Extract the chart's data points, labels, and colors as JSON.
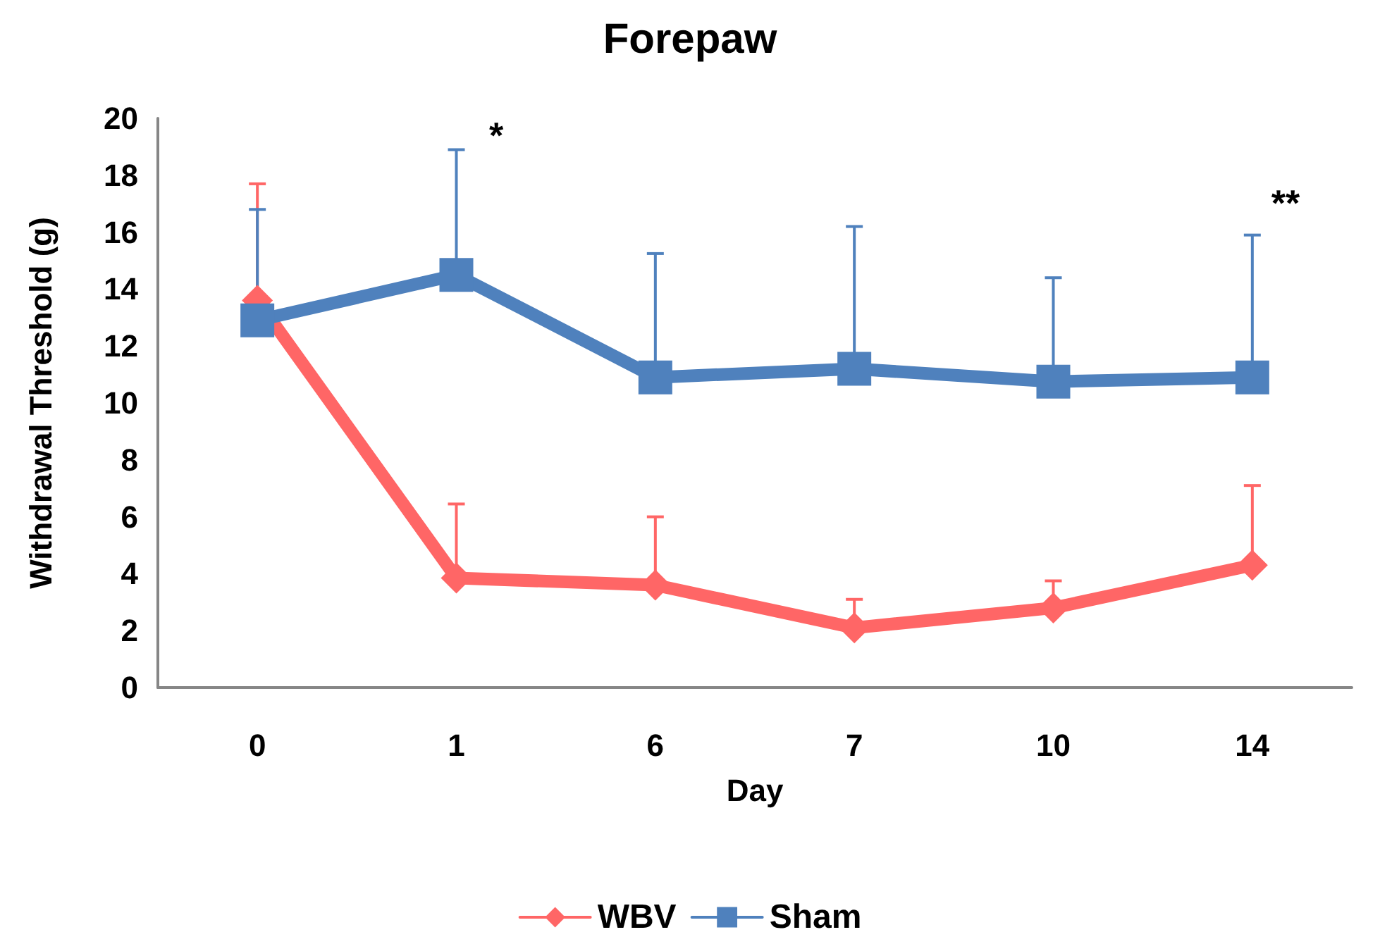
{
  "chart_data": {
    "type": "line",
    "title": "Forepaw",
    "xlabel": "Day",
    "ylabel": "Withdrawal Threshold (g)",
    "categories": [
      "0",
      "1",
      "6",
      "7",
      "10",
      "14"
    ],
    "series": [
      {
        "name": "WBV",
        "color": "#ff6666",
        "marker": "diamond",
        "values": [
          13.6,
          3.85,
          3.6,
          2.1,
          2.8,
          4.3
        ],
        "errors": [
          [
            13.6,
            17.7
          ],
          [
            3.85,
            6.45
          ],
          [
            3.6,
            6.0
          ],
          [
            2.1,
            3.1
          ],
          [
            2.8,
            3.75
          ],
          [
            4.3,
            7.1
          ]
        ]
      },
      {
        "name": "Sham",
        "color": "#4f81bd",
        "marker": "square",
        "values": [
          12.9,
          14.5,
          10.9,
          11.2,
          10.75,
          10.9
        ],
        "errors": [
          [
            12.9,
            16.8
          ],
          [
            14.5,
            18.9
          ],
          [
            10.9,
            15.25
          ],
          [
            11.2,
            16.2
          ],
          [
            10.75,
            14.4
          ],
          [
            10.9,
            15.9
          ]
        ]
      }
    ],
    "ylim": [
      0,
      20
    ],
    "yticks": [
      0,
      2,
      4,
      6,
      8,
      10,
      12,
      14,
      16,
      18,
      20
    ],
    "annotations": [
      "*",
      "**"
    ],
    "grid": false,
    "legend": "bottom",
    "line_style": "solid"
  }
}
